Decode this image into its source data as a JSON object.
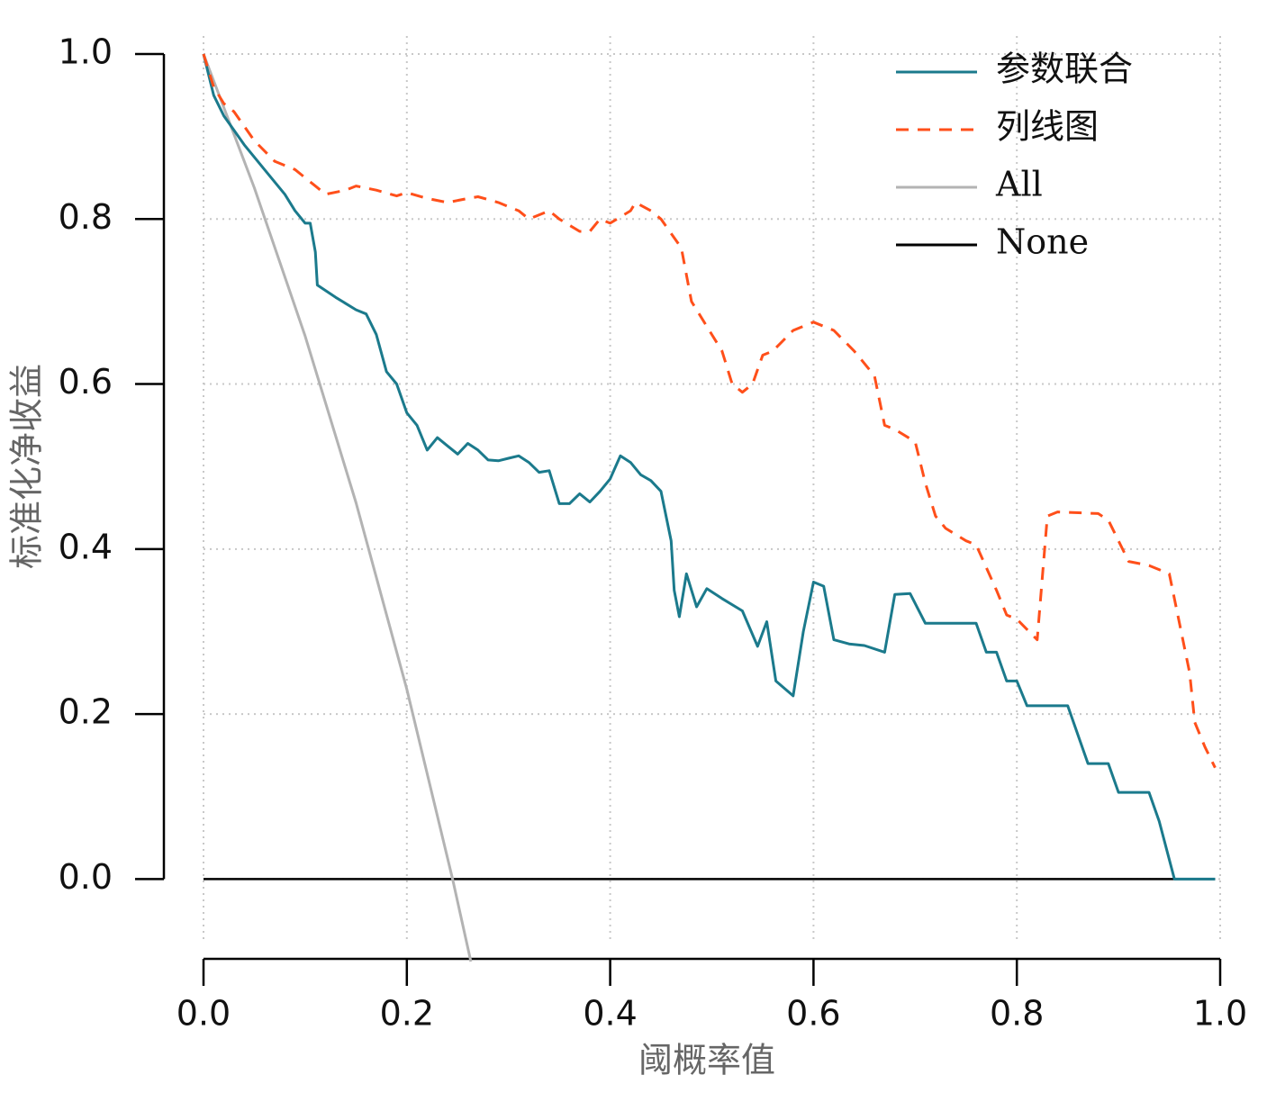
{
  "chart_data": {
    "type": "line",
    "xlabel": "阈概率值",
    "ylabel": "标准化净收益",
    "xlim": [
      0,
      1
    ],
    "ylim": [
      -0.1,
      1
    ],
    "xticks": [
      {
        "value": 0,
        "label": "0.0"
      },
      0.2,
      0.4,
      0.6,
      0.8,
      {
        "value": 1,
        "label": "1.0"
      }
    ],
    "yticks": [
      {
        "value": 0,
        "label": "0.0"
      },
      0.2,
      0.4,
      0.6,
      0.8,
      {
        "value": 1,
        "label": "1.0"
      }
    ],
    "grid": true,
    "legend": "top-right",
    "series": [
      {
        "name": "参数联合",
        "color": "#1b7a8c",
        "linestyle": "solid",
        "x": [
          0,
          0.01,
          0.02,
          0.04,
          0.06,
          0.08,
          0.09,
          0.1,
          0.105,
          0.11,
          0.112,
          0.13,
          0.15,
          0.16,
          0.17,
          0.18,
          0.19,
          0.2,
          0.21,
          0.22,
          0.23,
          0.24,
          0.25,
          0.26,
          0.27,
          0.28,
          0.29,
          0.3,
          0.31,
          0.32,
          0.33,
          0.34,
          0.35,
          0.36,
          0.37,
          0.38,
          0.39,
          0.4,
          0.41,
          0.42,
          0.43,
          0.44,
          0.45,
          0.46,
          0.463,
          0.468,
          0.475,
          0.485,
          0.495,
          0.51,
          0.53,
          0.545,
          0.554,
          0.563,
          0.58,
          0.59,
          0.6,
          0.61,
          0.62,
          0.635,
          0.65,
          0.67,
          0.68,
          0.695,
          0.71,
          0.76,
          0.77,
          0.78,
          0.79,
          0.8,
          0.81,
          0.85,
          0.87,
          0.89,
          0.9,
          0.93,
          0.94,
          0.955,
          0.995
        ],
        "values": [
          1.0,
          0.95,
          0.925,
          0.89,
          0.86,
          0.83,
          0.81,
          0.795,
          0.795,
          0.76,
          0.72,
          0.705,
          0.69,
          0.685,
          0.66,
          0.615,
          0.6,
          0.565,
          0.55,
          0.52,
          0.535,
          0.525,
          0.515,
          0.528,
          0.52,
          0.508,
          0.507,
          0.51,
          0.513,
          0.505,
          0.493,
          0.495,
          0.455,
          0.455,
          0.467,
          0.457,
          0.47,
          0.485,
          0.513,
          0.505,
          0.49,
          0.483,
          0.47,
          0.41,
          0.35,
          0.318,
          0.37,
          0.33,
          0.352,
          0.34,
          0.325,
          0.282,
          0.312,
          0.24,
          0.222,
          0.3,
          0.36,
          0.355,
          0.29,
          0.285,
          0.283,
          0.275,
          0.345,
          0.346,
          0.31,
          0.31,
          0.275,
          0.275,
          0.24,
          0.24,
          0.21,
          0.21,
          0.14,
          0.14,
          0.105,
          0.105,
          0.07,
          0,
          0
        ]
      },
      {
        "name": "列线图",
        "color": "#ff4f1a",
        "linestyle": "dashed",
        "x": [
          0,
          0.01,
          0.02,
          0.03,
          0.05,
          0.07,
          0.09,
          0.11,
          0.12,
          0.14,
          0.15,
          0.17,
          0.19,
          0.2,
          0.22,
          0.24,
          0.26,
          0.27,
          0.29,
          0.31,
          0.32,
          0.34,
          0.35,
          0.37,
          0.38,
          0.39,
          0.4,
          0.42,
          0.425,
          0.44,
          0.45,
          0.47,
          0.48,
          0.5,
          0.51,
          0.52,
          0.53,
          0.54,
          0.55,
          0.56,
          0.58,
          0.6,
          0.62,
          0.64,
          0.66,
          0.67,
          0.68,
          0.7,
          0.71,
          0.72,
          0.73,
          0.75,
          0.76,
          0.78,
          0.79,
          0.8,
          0.82,
          0.83,
          0.84,
          0.88,
          0.89,
          0.9,
          0.91,
          0.93,
          0.95,
          0.97,
          0.975,
          0.985,
          0.995
        ],
        "values": [
          1.0,
          0.96,
          0.94,
          0.93,
          0.895,
          0.87,
          0.86,
          0.84,
          0.83,
          0.835,
          0.84,
          0.835,
          0.828,
          0.832,
          0.825,
          0.82,
          0.825,
          0.827,
          0.82,
          0.81,
          0.8,
          0.81,
          0.8,
          0.785,
          0.785,
          0.8,
          0.795,
          0.81,
          0.82,
          0.81,
          0.8,
          0.765,
          0.7,
          0.66,
          0.64,
          0.6,
          0.59,
          0.6,
          0.635,
          0.64,
          0.665,
          0.675,
          0.665,
          0.64,
          0.61,
          0.55,
          0.545,
          0.53,
          0.48,
          0.44,
          0.425,
          0.41,
          0.405,
          0.35,
          0.32,
          0.315,
          0.29,
          0.44,
          0.445,
          0.443,
          0.435,
          0.41,
          0.385,
          0.38,
          0.37,
          0.25,
          0.19,
          0.16,
          0.135
        ]
      },
      {
        "name": "All",
        "color": "#b3b3b3",
        "linestyle": "solid",
        "x": [
          0,
          0.05,
          0.1,
          0.15,
          0.2,
          0.245,
          0.263
        ],
        "values": [
          1.0,
          0.838,
          0.658,
          0.456,
          0.23,
          0,
          -0.1
        ]
      },
      {
        "name": "None",
        "color": "#000000",
        "linestyle": "solid",
        "x": [
          0,
          0.995
        ],
        "values": [
          0,
          0
        ]
      }
    ]
  }
}
